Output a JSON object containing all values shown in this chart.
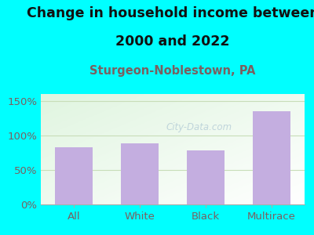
{
  "categories": [
    "All",
    "White",
    "Black",
    "Multirace"
  ],
  "values": [
    83,
    88,
    78,
    135
  ],
  "bar_color": "#c4aee0",
  "title_line1": "Change in household income between",
  "title_line2": "2000 and 2022",
  "subtitle": "Sturgeon-Noblestown, PA",
  "title_fontsize": 12.5,
  "subtitle_fontsize": 10.5,
  "tick_fontsize": 9.5,
  "background_color": "#00ffff",
  "ylabel_values": [
    0,
    50,
    100,
    150
  ],
  "ylabel_labels": [
    "0%",
    "50%",
    "100%",
    "150%"
  ],
  "ylim": [
    0,
    160
  ],
  "watermark": "City-Data.com",
  "title_color": "#111111",
  "subtitle_color": "#7a6060",
  "tick_color": "#7a6060",
  "grid_color": "#dde8d0",
  "plot_bg_gradient_top": "#d8edd8",
  "plot_bg_gradient_bottom": "#f8fff8"
}
